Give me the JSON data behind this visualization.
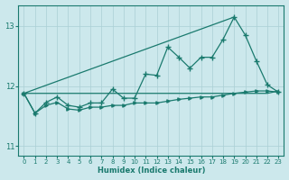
{
  "xlabel": "Humidex (Indice chaleur)",
  "background_color": "#cce8ec",
  "grid_color": "#aacfd4",
  "line_color": "#1a7a6e",
  "xlim": [
    -0.5,
    23.5
  ],
  "ylim": [
    10.85,
    13.35
  ],
  "yticks": [
    11,
    12,
    13
  ],
  "xticks": [
    0,
    1,
    2,
    3,
    4,
    5,
    6,
    7,
    8,
    9,
    10,
    11,
    12,
    13,
    14,
    15,
    16,
    17,
    18,
    19,
    20,
    21,
    22,
    23
  ],
  "line1_diagonal": [
    11.88,
    13.15
  ],
  "line2_zigzag": [
    11.88,
    11.55,
    11.73,
    11.82,
    11.68,
    11.65,
    11.72,
    11.72,
    11.95,
    11.8,
    11.8,
    12.2,
    12.18,
    12.65,
    12.48,
    12.3,
    12.48,
    12.48,
    12.78,
    13.15,
    12.85,
    12.42,
    12.02,
    11.9
  ],
  "line3_flat": [
    11.88,
    11.88,
    11.88,
    11.88,
    11.88,
    11.88,
    11.88,
    11.88,
    11.88,
    11.88,
    11.88,
    11.88,
    11.88,
    11.88,
    11.88,
    11.88,
    11.88,
    11.88,
    11.88,
    11.88,
    11.88,
    11.88,
    11.88,
    11.92
  ],
  "line4_gradual": [
    11.88,
    11.55,
    11.68,
    11.73,
    11.62,
    11.6,
    11.65,
    11.65,
    11.68,
    11.68,
    11.72,
    11.72,
    11.72,
    11.75,
    11.78,
    11.8,
    11.82,
    11.82,
    11.85,
    11.88,
    11.9,
    11.92,
    11.92,
    11.9
  ]
}
